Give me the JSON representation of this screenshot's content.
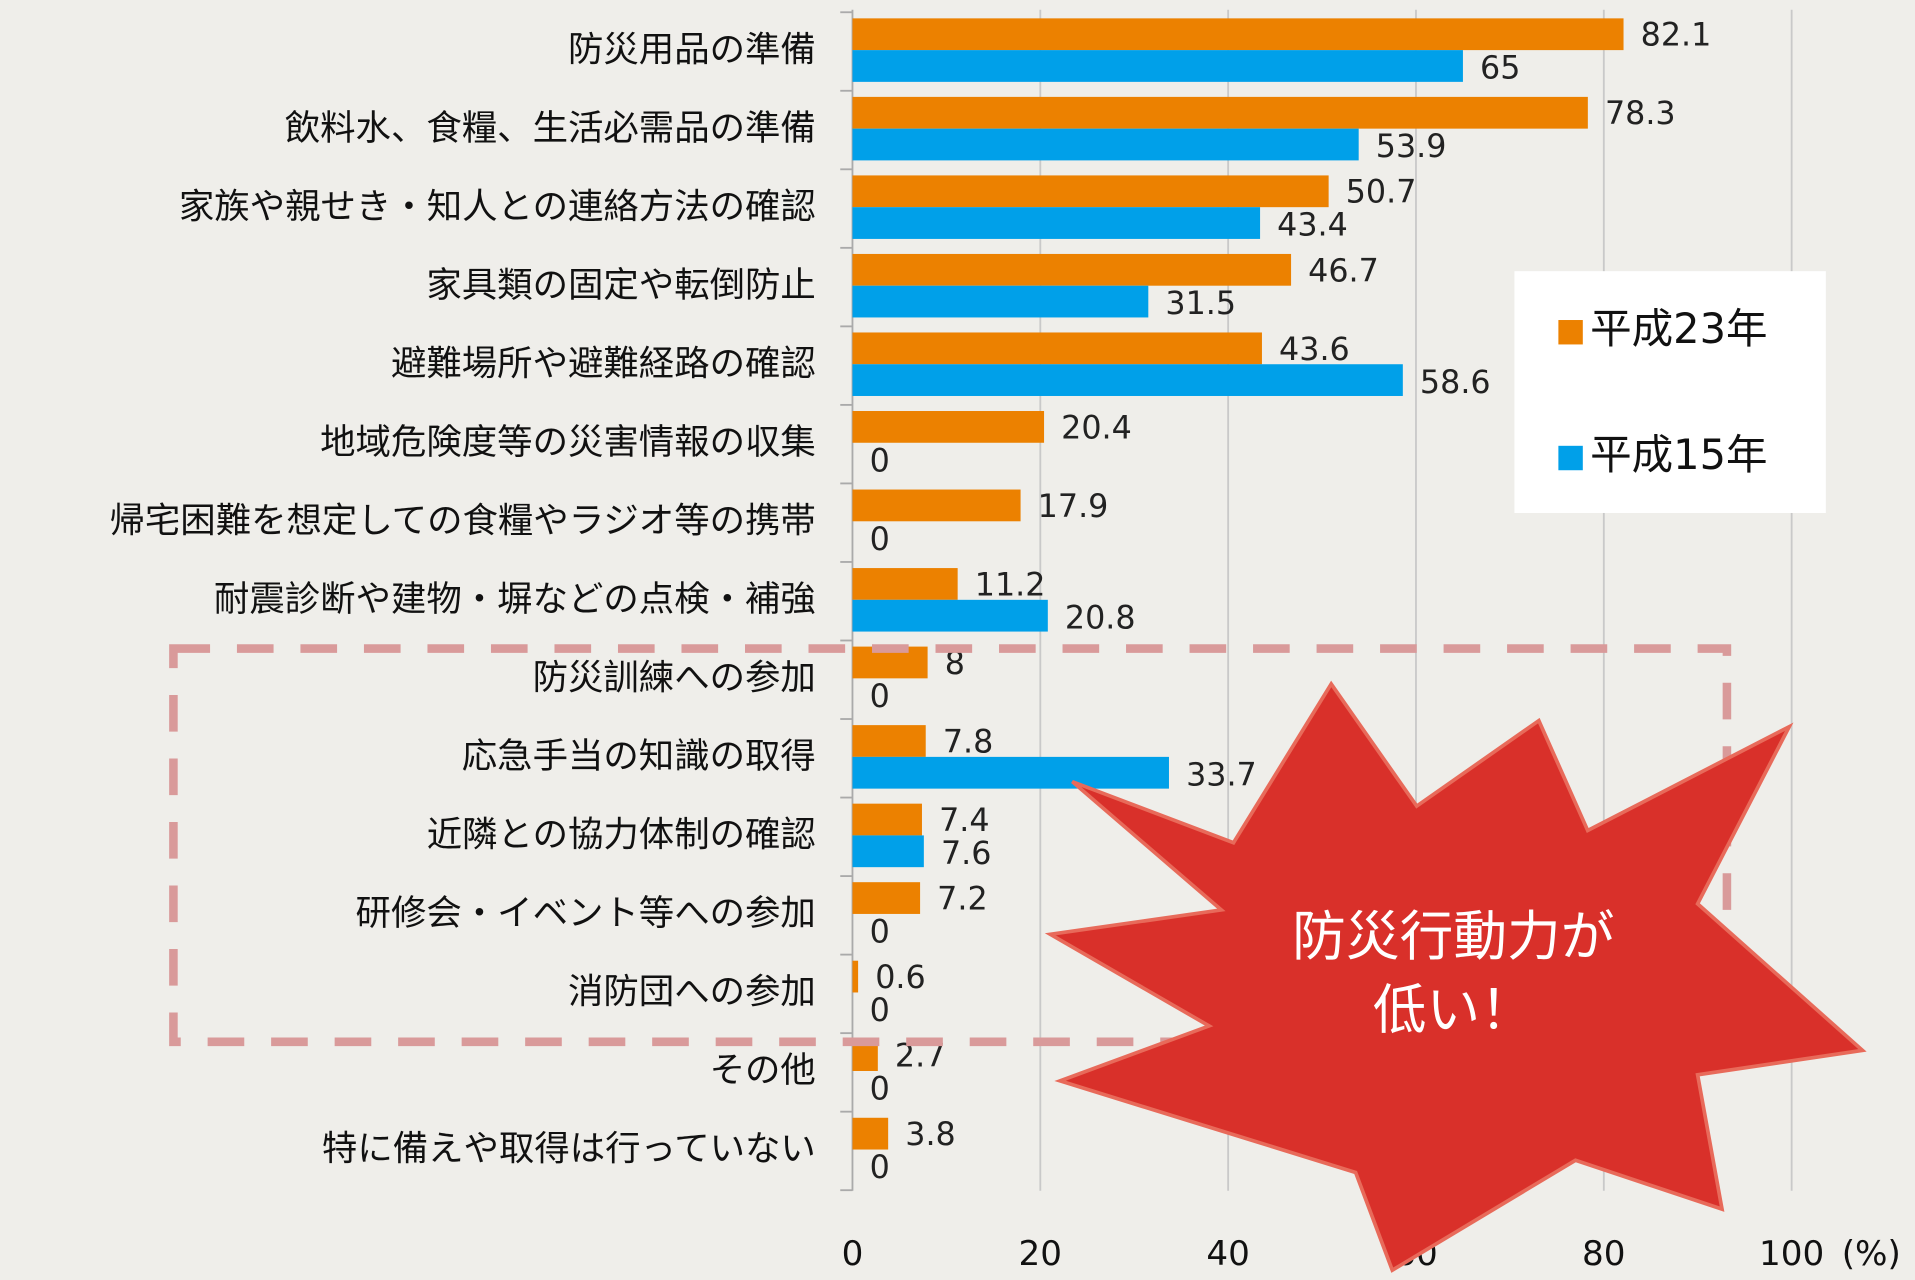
{
  "chart_data": {
    "type": "bar",
    "orientation": "horizontal",
    "categories": [
      "防災用品の準備",
      "飲料水、食糧、生活必需品の準備",
      "家族や親せき・知人との連絡方法の確認",
      "家具類の固定や転倒防止",
      "避難場所や避難経路の確認",
      "地域危険度等の災害情報の収集",
      "帰宅困難を想定しての食糧やラジオ等の携帯",
      "耐震診断や建物・塀などの点検・補強",
      "防災訓練への参加",
      "応急手当の知識の取得",
      "近隣との協力体制の確認",
      "研修会・イベント等への参加",
      "消防団への参加",
      "その他",
      "特に備えや取得は行っていない"
    ],
    "series": [
      {
        "name": "平成23年",
        "color": "#ec8100",
        "values": [
          82.1,
          78.3,
          50.7,
          46.7,
          43.6,
          20.4,
          17.9,
          11.2,
          8,
          7.8,
          7.4,
          7.2,
          0.6,
          2.7,
          3.8
        ]
      },
      {
        "name": "平成15年",
        "color": "#00a0e9",
        "values": [
          65,
          53.9,
          43.4,
          31.5,
          58.6,
          0,
          0,
          20.8,
          0,
          33.7,
          7.6,
          0,
          0,
          0,
          0
        ]
      }
    ],
    "xlim": [
      0,
      100
    ],
    "xticks": [
      0,
      20,
      40,
      60,
      80,
      100
    ],
    "x_unit": "(%)",
    "grid": true,
    "legend": "right",
    "annotation": [
      "防災行動力が",
      "低い！"
    ]
  }
}
